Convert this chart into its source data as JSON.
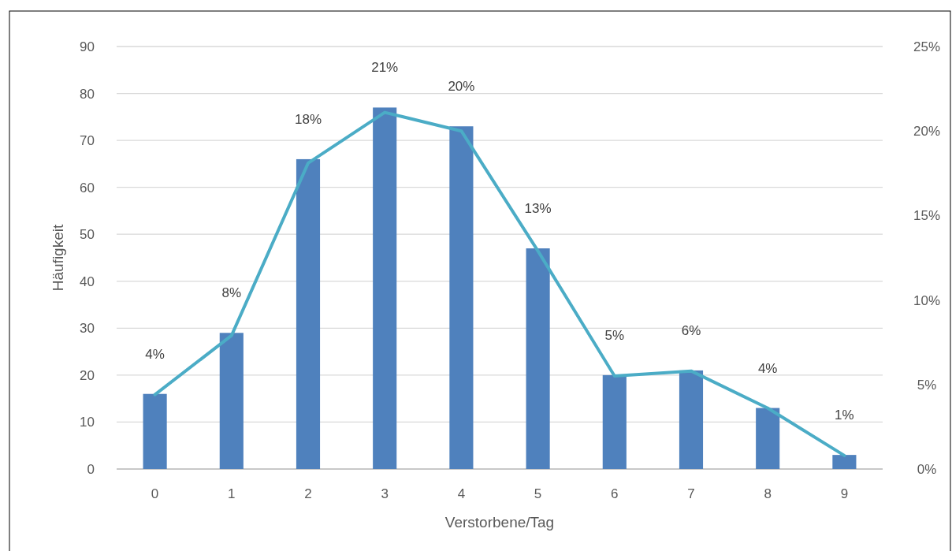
{
  "chart_data": {
    "type": "bar",
    "xlabel": "Verstorbene/Tag",
    "ylabel": "Häufigkeit",
    "categories": [
      "0",
      "1",
      "2",
      "3",
      "4",
      "5",
      "6",
      "7",
      "8",
      "9"
    ],
    "ylim": [
      0,
      90
    ],
    "yticks": [
      0,
      10,
      20,
      30,
      40,
      50,
      60,
      70,
      80,
      90
    ],
    "y2lim": [
      0,
      25
    ],
    "y2ticks": [
      {
        "value": 0,
        "label": "0%"
      },
      {
        "value": 5,
        "label": "5%"
      },
      {
        "value": 10,
        "label": "10%"
      },
      {
        "value": 15,
        "label": "15%"
      },
      {
        "value": 20,
        "label": "20%"
      },
      {
        "value": 25,
        "label": "25%"
      }
    ],
    "grid": "y",
    "series": [
      {
        "color": "#4f81bd",
        "values": [
          16,
          29,
          66,
          77,
          73,
          47,
          20,
          21,
          13,
          3
        ]
      },
      {
        "type": "line",
        "axis": "y2",
        "color": "#4bacc6",
        "marker": "none",
        "line_style": "solid",
        "values": [
          4.4,
          7.9,
          18.1,
          21.1,
          20.0,
          12.9,
          5.5,
          5.8,
          3.6,
          0.8
        ],
        "value_labels": [
          "4%",
          "8%",
          "18%",
          "21%",
          "20%",
          "13%",
          "5%",
          "6%",
          "4%",
          "1%"
        ]
      }
    ]
  }
}
